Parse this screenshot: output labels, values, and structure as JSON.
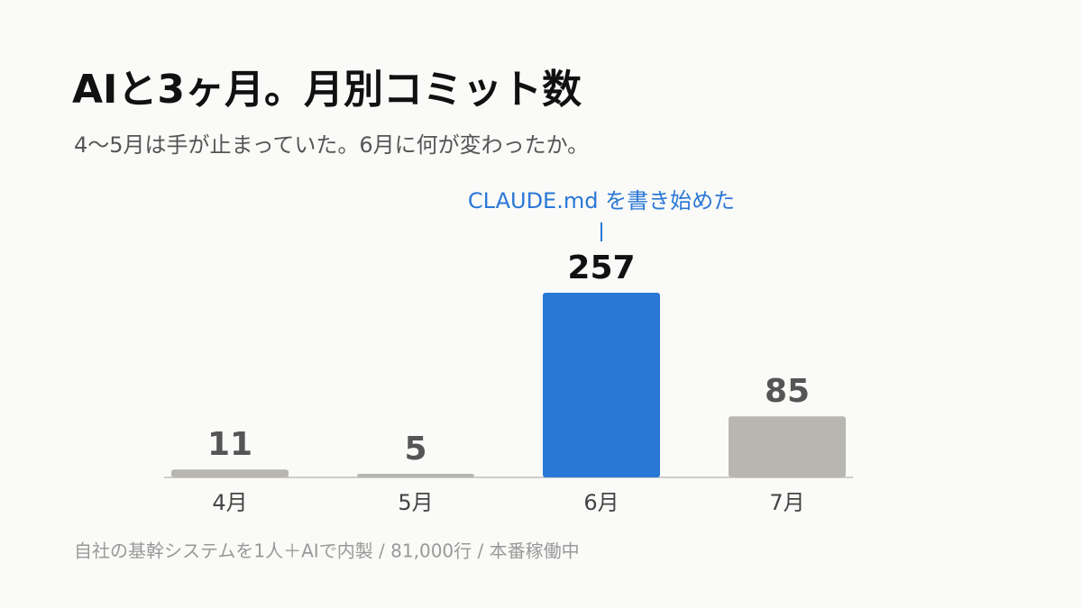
{
  "chart_data": {
    "type": "bar",
    "title": "AIと3ヶ月。月別コミット数",
    "subtitle": "4〜5月は手が止まっていた。6月に何が変わったか。",
    "categories": [
      "4月",
      "5月",
      "6月",
      "7月"
    ],
    "values": [
      11,
      5,
      257,
      85
    ],
    "colors": [
      "#b8b6b0",
      "#b8b6b0",
      "#2a78d6",
      "#b8b6b0"
    ],
    "annotation": {
      "text": "CLAUDE.md を書き始めた",
      "category": "6月",
      "color": "#2a78d6"
    },
    "footnote": "自社の基幹システムを1人＋AIで内製 / 81,000行 / 本番稼働中"
  }
}
